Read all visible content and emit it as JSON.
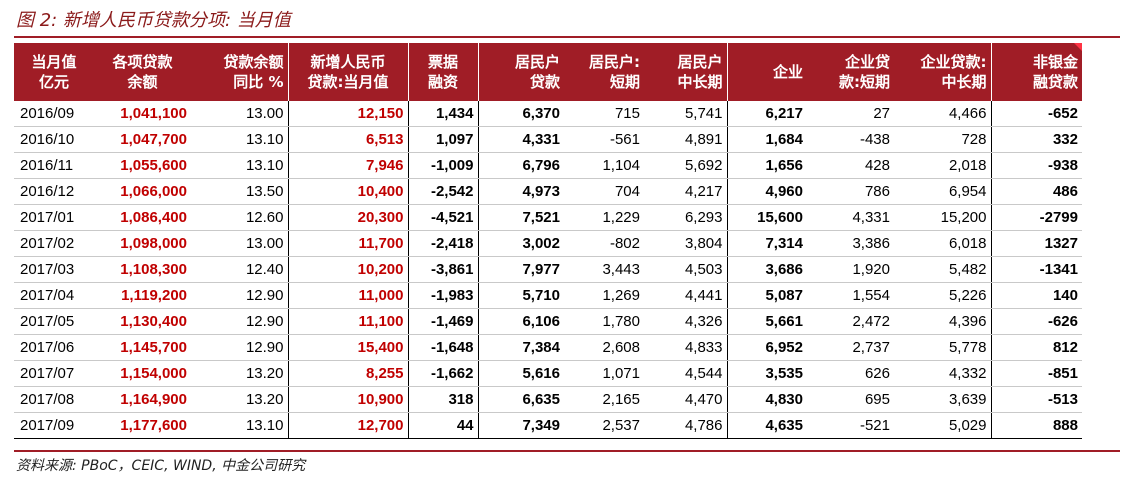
{
  "title": "图 2: 新增人民币贷款分项: 当月值",
  "source": "资料来源: PBoC，CEIC, WIND, 中金公司研究",
  "headers": [
    {
      "l1": "当月值",
      "l2": "亿元"
    },
    {
      "l1": "各项贷款",
      "l2": "余额"
    },
    {
      "l1": "贷款余额",
      "l2": "同比 %"
    },
    {
      "l1": "新增人民币",
      "l2": "贷款:当月值"
    },
    {
      "l1": "票据",
      "l2": "融资"
    },
    {
      "l1": "居民户",
      "l2": "贷款"
    },
    {
      "l1": "居民户:",
      "l2": "短期"
    },
    {
      "l1": "居民户",
      "l2": "中长期"
    },
    {
      "l1": "",
      "l2": "企业"
    },
    {
      "l1": "企业贷",
      "l2": "款:短期"
    },
    {
      "l1": "企业贷款:",
      "l2": "中长期"
    },
    {
      "l1": "非银金",
      "l2": "融贷款"
    }
  ],
  "rows": [
    [
      "2016/09",
      "1,041,100",
      "13.00",
      "12,150",
      "1,434",
      "6,370",
      "715",
      "5,741",
      "6,217",
      "27",
      "4,466",
      "-652"
    ],
    [
      "2016/10",
      "1,047,700",
      "13.10",
      "6,513",
      "1,097",
      "4,331",
      "-561",
      "4,891",
      "1,684",
      "-438",
      "728",
      "332"
    ],
    [
      "2016/11",
      "1,055,600",
      "13.10",
      "7,946",
      "-1,009",
      "6,796",
      "1,104",
      "5,692",
      "1,656",
      "428",
      "2,018",
      "-938"
    ],
    [
      "2016/12",
      "1,066,000",
      "13.50",
      "10,400",
      "-2,542",
      "4,973",
      "704",
      "4,217",
      "4,960",
      "786",
      "6,954",
      "486"
    ],
    [
      "2017/01",
      "1,086,400",
      "12.60",
      "20,300",
      "-4,521",
      "7,521",
      "1,229",
      "6,293",
      "15,600",
      "4,331",
      "15,200",
      "-2799"
    ],
    [
      "2017/02",
      "1,098,000",
      "13.00",
      "11,700",
      "-2,418",
      "3,002",
      "-802",
      "3,804",
      "7,314",
      "3,386",
      "6,018",
      "1327"
    ],
    [
      "2017/03",
      "1,108,300",
      "12.40",
      "10,200",
      "-3,861",
      "7,977",
      "3,443",
      "4,503",
      "3,686",
      "1,920",
      "5,482",
      "-1341"
    ],
    [
      "2017/04",
      "1,119,200",
      "12.90",
      "11,000",
      "-1,983",
      "5,710",
      "1,269",
      "4,441",
      "5,087",
      "1,554",
      "5,226",
      "140"
    ],
    [
      "2017/05",
      "1,130,400",
      "12.90",
      "11,100",
      "-1,469",
      "6,106",
      "1,780",
      "4,326",
      "5,661",
      "2,472",
      "4,396",
      "-626"
    ],
    [
      "2017/06",
      "1,145,700",
      "12.90",
      "15,400",
      "-1,648",
      "7,384",
      "2,608",
      "4,833",
      "6,952",
      "2,737",
      "5,778",
      "812"
    ],
    [
      "2017/07",
      "1,154,000",
      "13.20",
      "8,255",
      "-1,662",
      "5,616",
      "1,071",
      "4,544",
      "3,535",
      "626",
      "4,332",
      "-851"
    ],
    [
      "2017/08",
      "1,164,900",
      "13.20",
      "10,900",
      "318",
      "6,635",
      "2,165",
      "4,470",
      "4,830",
      "695",
      "3,639",
      "-513"
    ],
    [
      "2017/09",
      "1,177,600",
      "13.10",
      "12,700",
      "44",
      "7,349",
      "2,537",
      "4,786",
      "4,635",
      "-521",
      "5,029",
      "888"
    ]
  ],
  "colors": {
    "header_bg": "#a01d26",
    "accent_red": "#c00000"
  }
}
